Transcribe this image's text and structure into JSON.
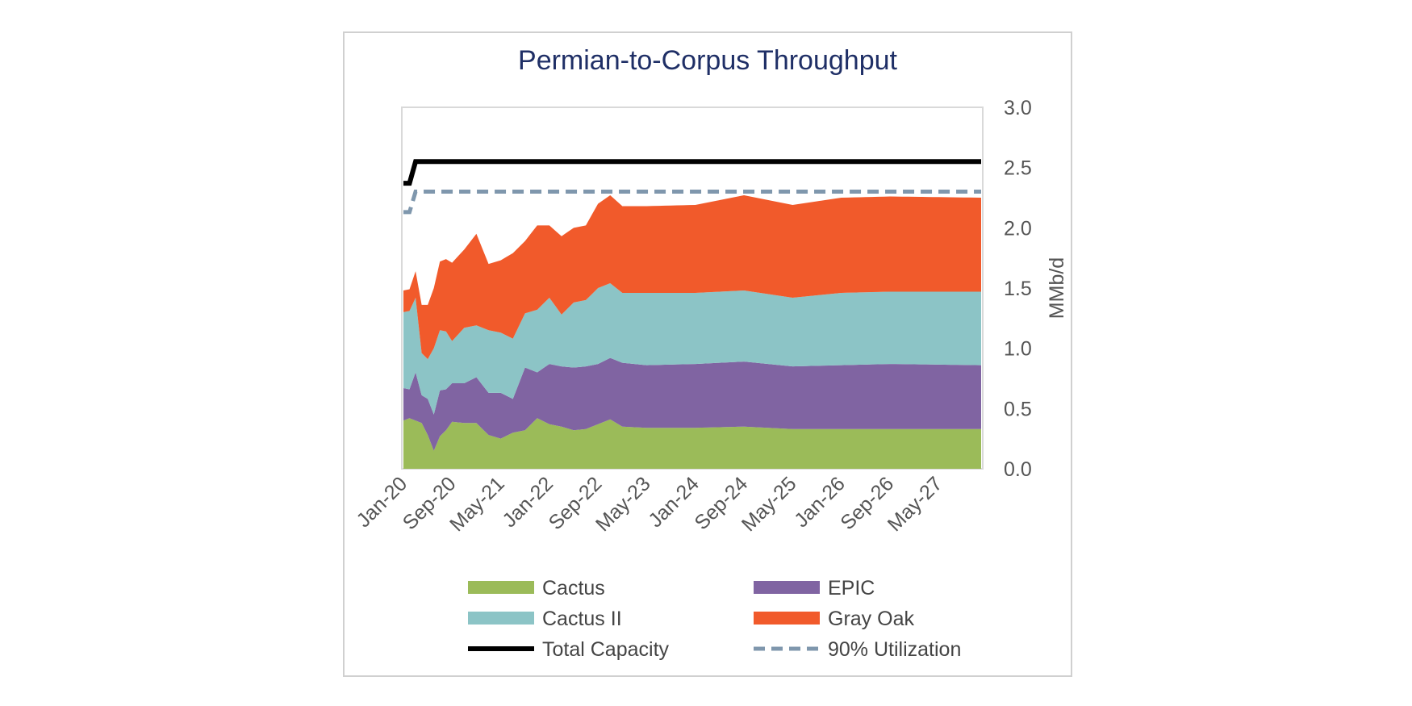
{
  "chart_data": {
    "type": "area",
    "title": "Permian-to-Corpus Throughput",
    "ylabel": "MMb/d",
    "ylim": [
      0,
      3.0
    ],
    "yticks": [
      "0.0",
      "0.5",
      "1.0",
      "1.5",
      "2.0",
      "2.5",
      "3.0"
    ],
    "xticks": [
      "Jan-20",
      "Sep-20",
      "May-21",
      "Jan-22",
      "Sep-22",
      "May-23",
      "Jan-24",
      "Sep-24",
      "May-25",
      "Jan-26",
      "Sep-26",
      "May-27"
    ],
    "x_range": [
      "Jan-20",
      "Dec-27"
    ],
    "axis_position": {
      "y": "right"
    },
    "grid": false,
    "legend": "bottom",
    "stack_order": [
      "Cactus",
      "EPIC",
      "Cactus II",
      "Gray Oak"
    ],
    "series": [
      {
        "name": "Cactus",
        "kind": "area",
        "color": "#9bbb59",
        "points": [
          [
            "Jan-20",
            0.4
          ],
          [
            "Feb-20",
            0.42
          ],
          [
            "Mar-20",
            0.4
          ],
          [
            "Apr-20",
            0.38
          ],
          [
            "May-20",
            0.28
          ],
          [
            "Jun-20",
            0.15
          ],
          [
            "Jul-20",
            0.27
          ],
          [
            "Aug-20",
            0.32
          ],
          [
            "Sep-20",
            0.39
          ],
          [
            "Nov-20",
            0.38
          ],
          [
            "Jan-21",
            0.38
          ],
          [
            "Mar-21",
            0.28
          ],
          [
            "May-21",
            0.25
          ],
          [
            "Jul-21",
            0.3
          ],
          [
            "Sep-21",
            0.32
          ],
          [
            "Nov-21",
            0.42
          ],
          [
            "Jan-22",
            0.37
          ],
          [
            "Mar-22",
            0.35
          ],
          [
            "May-22",
            0.32
          ],
          [
            "Jul-22",
            0.33
          ],
          [
            "Sep-22",
            0.37
          ],
          [
            "Nov-22",
            0.41
          ],
          [
            "Jan-23",
            0.35
          ],
          [
            "May-23",
            0.34
          ],
          [
            "Jan-24",
            0.34
          ],
          [
            "Sep-24",
            0.35
          ],
          [
            "May-25",
            0.33
          ],
          [
            "Jan-26",
            0.33
          ],
          [
            "Sep-26",
            0.33
          ],
          [
            "Dec-27",
            0.33
          ]
        ]
      },
      {
        "name": "EPIC",
        "kind": "area",
        "color": "#8064a2",
        "points": [
          [
            "Jan-20",
            0.27
          ],
          [
            "Feb-20",
            0.24
          ],
          [
            "Mar-20",
            0.4
          ],
          [
            "Apr-20",
            0.23
          ],
          [
            "May-20",
            0.3
          ],
          [
            "Jun-20",
            0.3
          ],
          [
            "Jul-20",
            0.38
          ],
          [
            "Aug-20",
            0.34
          ],
          [
            "Sep-20",
            0.32
          ],
          [
            "Nov-20",
            0.33
          ],
          [
            "Jan-21",
            0.38
          ],
          [
            "Mar-21",
            0.35
          ],
          [
            "May-21",
            0.38
          ],
          [
            "Jul-21",
            0.28
          ],
          [
            "Sep-21",
            0.52
          ],
          [
            "Nov-21",
            0.38
          ],
          [
            "Jan-22",
            0.5
          ],
          [
            "Mar-22",
            0.5
          ],
          [
            "May-22",
            0.52
          ],
          [
            "Jul-22",
            0.52
          ],
          [
            "Sep-22",
            0.5
          ],
          [
            "Nov-22",
            0.51
          ],
          [
            "Jan-23",
            0.53
          ],
          [
            "May-23",
            0.52
          ],
          [
            "Jan-24",
            0.53
          ],
          [
            "Sep-24",
            0.54
          ],
          [
            "May-25",
            0.52
          ],
          [
            "Jan-26",
            0.53
          ],
          [
            "Sep-26",
            0.54
          ],
          [
            "Dec-27",
            0.53
          ]
        ]
      },
      {
        "name": "Cactus II",
        "kind": "area",
        "color": "#8cc4c6",
        "points": [
          [
            "Jan-20",
            0.63
          ],
          [
            "Feb-20",
            0.65
          ],
          [
            "Mar-20",
            0.62
          ],
          [
            "Apr-20",
            0.35
          ],
          [
            "May-20",
            0.33
          ],
          [
            "Jun-20",
            0.55
          ],
          [
            "Jul-20",
            0.5
          ],
          [
            "Aug-20",
            0.48
          ],
          [
            "Sep-20",
            0.35
          ],
          [
            "Nov-20",
            0.46
          ],
          [
            "Jan-21",
            0.43
          ],
          [
            "Mar-21",
            0.52
          ],
          [
            "May-21",
            0.5
          ],
          [
            "Jul-21",
            0.5
          ],
          [
            "Sep-21",
            0.45
          ],
          [
            "Nov-21",
            0.52
          ],
          [
            "Jan-22",
            0.55
          ],
          [
            "Mar-22",
            0.43
          ],
          [
            "May-22",
            0.54
          ],
          [
            "Jul-22",
            0.55
          ],
          [
            "Sep-22",
            0.63
          ],
          [
            "Nov-22",
            0.62
          ],
          [
            "Jan-23",
            0.58
          ],
          [
            "May-23",
            0.6
          ],
          [
            "Jan-24",
            0.59
          ],
          [
            "Sep-24",
            0.59
          ],
          [
            "May-25",
            0.57
          ],
          [
            "Jan-26",
            0.6
          ],
          [
            "Sep-26",
            0.6
          ],
          [
            "Dec-27",
            0.61
          ]
        ]
      },
      {
        "name": "Gray Oak",
        "kind": "area",
        "color": "#f15a2b",
        "points": [
          [
            "Jan-20",
            0.18
          ],
          [
            "Feb-20",
            0.18
          ],
          [
            "Mar-20",
            0.22
          ],
          [
            "Apr-20",
            0.4
          ],
          [
            "May-20",
            0.45
          ],
          [
            "Jun-20",
            0.5
          ],
          [
            "Jul-20",
            0.57
          ],
          [
            "Aug-20",
            0.6
          ],
          [
            "Sep-20",
            0.65
          ],
          [
            "Nov-20",
            0.65
          ],
          [
            "Jan-21",
            0.76
          ],
          [
            "Mar-21",
            0.55
          ],
          [
            "May-21",
            0.6
          ],
          [
            "Jul-21",
            0.71
          ],
          [
            "Sep-21",
            0.6
          ],
          [
            "Nov-21",
            0.7
          ],
          [
            "Jan-22",
            0.6
          ],
          [
            "Mar-22",
            0.65
          ],
          [
            "May-22",
            0.62
          ],
          [
            "Jul-22",
            0.62
          ],
          [
            "Sep-22",
            0.7
          ],
          [
            "Nov-22",
            0.73
          ],
          [
            "Jan-23",
            0.72
          ],
          [
            "May-23",
            0.72
          ],
          [
            "Jan-24",
            0.73
          ],
          [
            "Sep-24",
            0.79
          ],
          [
            "May-25",
            0.77
          ],
          [
            "Jan-26",
            0.79
          ],
          [
            "Sep-26",
            0.79
          ],
          [
            "Dec-27",
            0.78
          ]
        ]
      },
      {
        "name": "Total Capacity",
        "kind": "line",
        "color": "#000000",
        "dash": false,
        "points": [
          [
            "Jan-20",
            2.37
          ],
          [
            "Feb-20",
            2.37
          ],
          [
            "Mar-20",
            2.55
          ],
          [
            "Dec-27",
            2.55
          ]
        ]
      },
      {
        "name": "90% Utilization",
        "kind": "line",
        "color": "#7f97ad",
        "dash": true,
        "points": [
          [
            "Jan-20",
            2.13
          ],
          [
            "Feb-20",
            2.13
          ],
          [
            "Mar-20",
            2.3
          ],
          [
            "Dec-27",
            2.3
          ]
        ]
      }
    ]
  }
}
